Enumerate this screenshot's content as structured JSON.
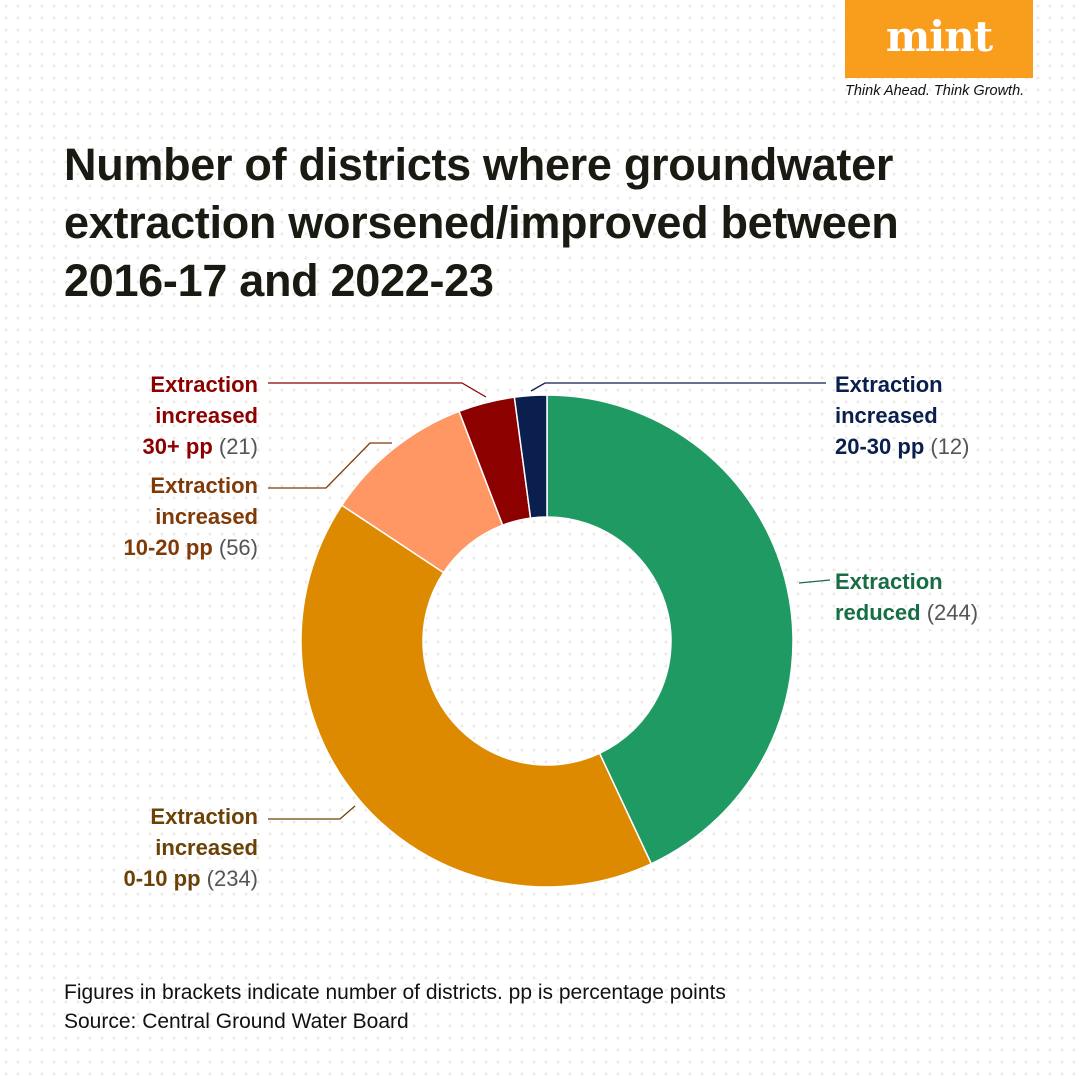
{
  "brand": {
    "logo_text": "mint",
    "tagline": "Think Ahead. Think Growth.",
    "color": "#f99d1c"
  },
  "title": "Number of districts where groundwater extraction worsened/improved between 2016-17 and 2022-23",
  "footnote": {
    "note": "Figures in brackets indicate number of districts. pp is percentage points",
    "source": "Source: Central Ground Water Board"
  },
  "chart_data": {
    "type": "pie",
    "variant": "donut",
    "title": "Number of districts where groundwater extraction worsened/improved between 2016-17 and 2022-23",
    "unit": "districts",
    "start": "top, clockwise",
    "slices": [
      {
        "label_lines": [
          "Extraction",
          "reduced"
        ],
        "value": 244,
        "value_text": "(244)",
        "color": "#1f9a62",
        "label_color": "#176e44"
      },
      {
        "label_lines": [
          "Extraction",
          "increased",
          "0-10 pp"
        ],
        "value": 234,
        "value_text": "(234)",
        "color": "#dd8a00",
        "label_color": "#6b4206"
      },
      {
        "label_lines": [
          "Extraction",
          "increased",
          "10-20 pp"
        ],
        "value": 56,
        "value_text": "(56)",
        "color": "#fe9764",
        "label_color": "#7f3a08"
      },
      {
        "label_lines": [
          "Extraction",
          "increased",
          "30+ pp"
        ],
        "value": 21,
        "value_text": "(21)",
        "color": "#8c0000",
        "label_color": "#8c0000"
      },
      {
        "label_lines": [
          "Extraction",
          "increased",
          "20-30 pp"
        ],
        "value": 12,
        "value_text": "(12)",
        "color": "#0a1f4d",
        "label_color": "#0a1f4d"
      }
    ]
  }
}
